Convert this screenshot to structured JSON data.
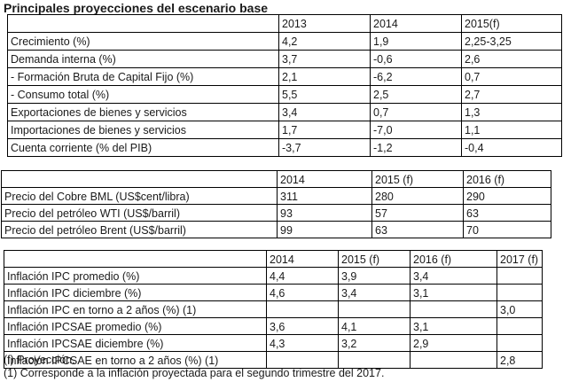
{
  "title": "Principales proyecciones del escenario base",
  "table1": {
    "headers": [
      "",
      "2013",
      "2014",
      "2015(f)"
    ],
    "rows": [
      [
        "Crecimiento (%)",
        "4,2",
        "1,9",
        "2,25-3,25"
      ],
      [
        "Demanda interna (%)",
        "3,7",
        "-0,6",
        "2,6"
      ],
      [
        "- Formación Bruta de Capital Fijo (%)",
        "2,1",
        "-6,2",
        "0,7"
      ],
      [
        "- Consumo total (%)",
        "5,5",
        "2,5",
        "2,7"
      ],
      [
        "Exportaciones de bienes y servicios",
        "3,4",
        "0,7",
        "1,3"
      ],
      [
        "Importaciones de bienes y servicios",
        "1,7",
        "-7,0",
        "1,1"
      ],
      [
        "Cuenta corriente (% del PIB)",
        "-3,7",
        "-1,2",
        "-0,4"
      ]
    ]
  },
  "table2": {
    "headers": [
      "",
      "2014",
      "2015 (f)",
      "2016 (f)"
    ],
    "rows": [
      [
        "Precio del Cobre BML (US$cent/libra)",
        "311",
        "280",
        "290"
      ],
      [
        "Precio del petróleo WTI (US$/barril)",
        "93",
        "57",
        "63"
      ],
      [
        "Precio del petróleo Brent (US$/barril)",
        "99",
        "63",
        "70"
      ]
    ]
  },
  "table3": {
    "headers": [
      "",
      "2014",
      "2015 (f)",
      "2016 (f)",
      "2017 (f)"
    ],
    "rows": [
      [
        "Inflación IPC promedio (%)",
        "4,4",
        "3,9",
        "3,4",
        ""
      ],
      [
        "Inflación IPC diciembre (%)",
        "4,6",
        "3,4",
        "3,1",
        ""
      ],
      [
        "Inflación IPC en torno a 2 años (%) (1)",
        "",
        "",
        "",
        "3,0"
      ],
      [
        "Inflación IPCSAE promedio (%)",
        "3,6",
        "4,1",
        "3,1",
        ""
      ],
      [
        "Inflación IPCSAE diciembre (%)",
        "4,3",
        "3,2",
        "2,9",
        ""
      ],
      [
        "Inflación IPCSAE en torno a 2 años (%) (1)",
        "",
        "",
        "",
        "2,8"
      ]
    ]
  },
  "notes": {
    "f": "(f) Proyección.",
    "one": "(1) Corresponde a la inflación proyectada para el segundo trimestre del 2017."
  }
}
